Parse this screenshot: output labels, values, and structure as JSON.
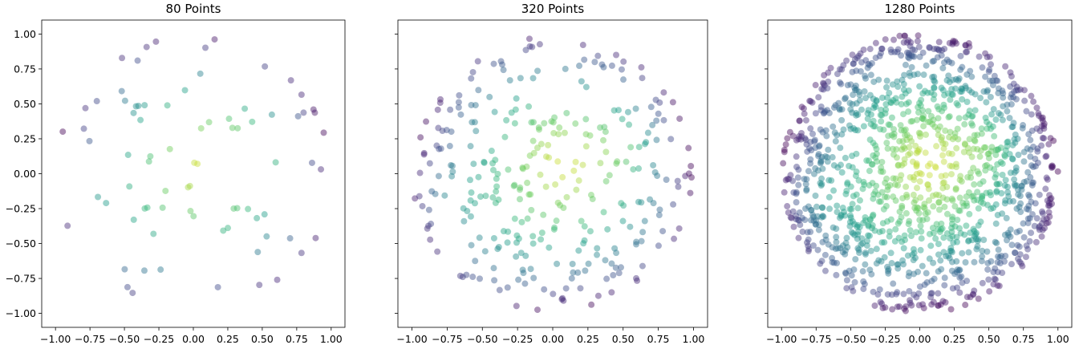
{
  "chart_data": [
    {
      "type": "scatter",
      "title": "80 Points",
      "xlabel": "",
      "ylabel": "",
      "xlim": [
        -1.1,
        1.1
      ],
      "ylim": [
        -1.1,
        1.1
      ],
      "xticks": [
        -1.0,
        -0.75,
        -0.5,
        -0.25,
        0.0,
        0.25,
        0.5,
        0.75,
        1.0
      ],
      "yticks": [
        -1.0,
        -0.75,
        -0.5,
        -0.25,
        0.0,
        0.25,
        0.5,
        0.75,
        1.0
      ],
      "x_tick_labels": [
        "−1.00",
        "−0.75",
        "−0.50",
        "−0.25",
        "0.00",
        "0.25",
        "0.50",
        "0.75",
        "1.00"
      ],
      "y_tick_labels": [
        "−1.00",
        "−0.75",
        "−0.50",
        "−0.25",
        "0.00",
        "0.25",
        "0.50",
        "0.75",
        "1.00"
      ],
      "show_y_tick_labels": true,
      "grid": false,
      "colormap": "viridis",
      "marker_alpha": 0.45,
      "n_points": 80,
      "seed": 80
    },
    {
      "type": "scatter",
      "title": "320 Points",
      "xlabel": "",
      "ylabel": "",
      "xlim": [
        -1.1,
        1.1
      ],
      "ylim": [
        -1.1,
        1.1
      ],
      "xticks": [
        -1.0,
        -0.75,
        -0.5,
        -0.25,
        0.0,
        0.25,
        0.5,
        0.75,
        1.0
      ],
      "yticks": [
        -1.0,
        -0.75,
        -0.5,
        -0.25,
        0.0,
        0.25,
        0.5,
        0.75,
        1.0
      ],
      "x_tick_labels": [
        "−1.00",
        "−0.75",
        "−0.50",
        "−0.25",
        "0.00",
        "0.25",
        "0.50",
        "0.75",
        "1.00"
      ],
      "y_tick_labels": [],
      "show_y_tick_labels": false,
      "grid": false,
      "colormap": "viridis",
      "marker_alpha": 0.45,
      "n_points": 320,
      "seed": 320
    },
    {
      "type": "scatter",
      "title": "1280 Points",
      "xlabel": "",
      "ylabel": "",
      "xlim": [
        -1.1,
        1.1
      ],
      "ylim": [
        -1.1,
        1.1
      ],
      "xticks": [
        -1.0,
        -0.75,
        -0.5,
        -0.25,
        0.0,
        0.25,
        0.5,
        0.75,
        1.0
      ],
      "yticks": [
        -1.0,
        -0.75,
        -0.5,
        -0.25,
        0.0,
        0.25,
        0.5,
        0.75,
        1.0
      ],
      "x_tick_labels": [
        "−1.00",
        "−0.75",
        "−0.50",
        "−0.25",
        "0.00",
        "0.25",
        "0.50",
        "0.75",
        "1.00"
      ],
      "y_tick_labels": [],
      "show_y_tick_labels": false,
      "grid": false,
      "colormap": "viridis",
      "marker_alpha": 0.45,
      "n_points": 1280,
      "seed": 1280
    }
  ]
}
